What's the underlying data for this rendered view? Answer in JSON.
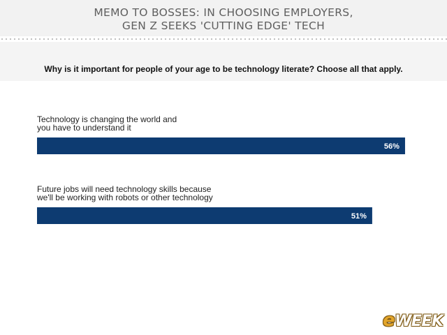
{
  "header": {
    "title_line1": "MEMO TO BOSSES: IN CHOOSING EMPLOYERS,",
    "title_line2": "GEN Z SEEKS 'CUTTING EDGE' TECH"
  },
  "colors": {
    "bar": "#0d3b71",
    "header_bg": "#f2f2f2"
  },
  "chart_data": {
    "type": "bar",
    "orientation": "horizontal",
    "title": "Why is it important for people of your age to be technology literate? Choose all that apply.",
    "categories": [
      [
        "Technology is changing the world and",
        "you have to understand it"
      ],
      [
        "Future jobs will need technology skills because",
        "we'll be working with robots or other technology"
      ]
    ],
    "values": [
      56,
      51
    ],
    "value_labels": [
      "56%",
      "51%"
    ],
    "xlim": [
      0,
      100
    ],
    "grid": false,
    "legend": "none"
  },
  "logo": {
    "e": "e",
    "rest": "WEEK"
  }
}
